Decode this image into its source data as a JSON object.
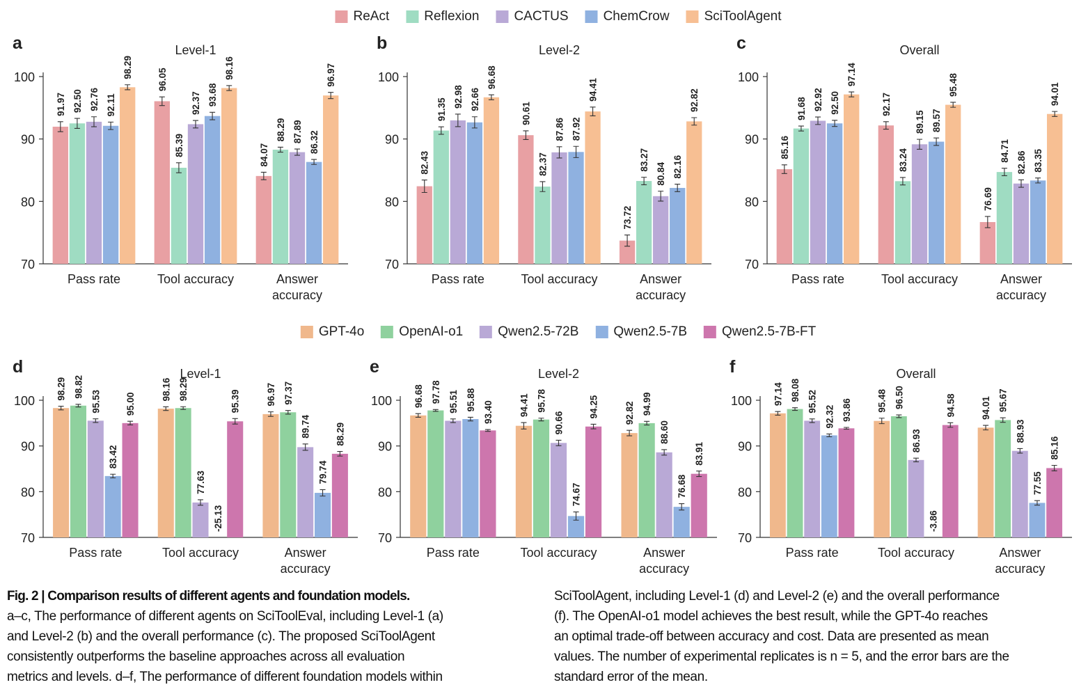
{
  "chart_data": [
    {
      "type": "bar",
      "panel": "a",
      "title": "Level-1",
      "categories": [
        "Pass rate",
        "Tool accuracy",
        "Answer accuracy"
      ],
      "ylim": [
        70,
        100
      ],
      "yticks": [
        70,
        80,
        90,
        100
      ],
      "series": [
        {
          "name": "ReAct",
          "color": "#e8a0a3",
          "values": [
            91.97,
            96.05,
            84.07
          ],
          "errors": [
            0.8,
            0.7,
            0.6
          ],
          "value_labels": [
            "91.97",
            "96.05",
            "84.07"
          ]
        },
        {
          "name": "Reflexion",
          "color": "#9fdcc2",
          "values": [
            92.5,
            85.39,
            88.29
          ],
          "errors": [
            0.8,
            0.8,
            0.4
          ],
          "value_labels": [
            "92.50",
            "85.39",
            "88.29"
          ]
        },
        {
          "name": "CACTUS",
          "color": "#b9a9d6",
          "values": [
            92.76,
            92.37,
            87.89
          ],
          "errors": [
            0.8,
            0.6,
            0.5
          ],
          "value_labels": [
            "92.76",
            "92.37",
            "87.89"
          ]
        },
        {
          "name": "ChemCrow",
          "color": "#8fb1e0",
          "values": [
            92.11,
            93.68,
            86.32
          ],
          "errors": [
            0.6,
            0.6,
            0.4
          ],
          "value_labels": [
            "92.11",
            "93.68",
            "86.32"
          ]
        },
        {
          "name": "SciToolAgent",
          "color": "#f7bf93",
          "values": [
            98.29,
            98.16,
            96.97
          ],
          "errors": [
            0.4,
            0.4,
            0.5
          ],
          "value_labels": [
            "98.29",
            "98.16",
            "96.97"
          ]
        }
      ]
    },
    {
      "type": "bar",
      "panel": "b",
      "title": "Level-2",
      "categories": [
        "Pass rate",
        "Tool accuracy",
        "Answer accuracy"
      ],
      "ylim": [
        70,
        100
      ],
      "yticks": [
        70,
        80,
        90,
        100
      ],
      "series": [
        {
          "name": "ReAct",
          "color": "#e8a0a3",
          "values": [
            82.43,
            90.61,
            73.72
          ],
          "errors": [
            1.0,
            0.7,
            0.9
          ],
          "value_labels": [
            "82.43",
            "90.61",
            "73.72"
          ]
        },
        {
          "name": "Reflexion",
          "color": "#9fdcc2",
          "values": [
            91.35,
            82.37,
            83.27
          ],
          "errors": [
            0.6,
            0.8,
            0.6
          ],
          "value_labels": [
            "91.35",
            "82.37",
            "83.27"
          ]
        },
        {
          "name": "CACTUS",
          "color": "#b9a9d6",
          "values": [
            92.98,
            87.86,
            80.84
          ],
          "errors": [
            1.0,
            0.9,
            0.8
          ],
          "value_labels": [
            "92.98",
            "87.86",
            "80.84"
          ]
        },
        {
          "name": "ChemCrow",
          "color": "#8fb1e0",
          "values": [
            92.66,
            87.92,
            82.16
          ],
          "errors": [
            0.9,
            0.9,
            0.6
          ],
          "value_labels": [
            "92.66",
            "87.92",
            "82.16"
          ]
        },
        {
          "name": "SciToolAgent",
          "color": "#f7bf93",
          "values": [
            96.68,
            94.41,
            92.82
          ],
          "errors": [
            0.4,
            0.7,
            0.6
          ],
          "value_labels": [
            "96.68",
            "94.41",
            "92.82"
          ]
        }
      ]
    },
    {
      "type": "bar",
      "panel": "c",
      "title": "Overall",
      "categories": [
        "Pass rate",
        "Tool accuracy",
        "Answer accuracy"
      ],
      "ylim": [
        70,
        100
      ],
      "yticks": [
        70,
        80,
        90,
        100
      ],
      "series": [
        {
          "name": "ReAct",
          "color": "#e8a0a3",
          "values": [
            85.16,
            92.17,
            76.69
          ],
          "errors": [
            0.7,
            0.6,
            0.9
          ],
          "value_labels": [
            "85.16",
            "92.17",
            "76.69"
          ]
        },
        {
          "name": "Reflexion",
          "color": "#9fdcc2",
          "values": [
            91.68,
            83.24,
            84.71
          ],
          "errors": [
            0.4,
            0.6,
            0.6
          ],
          "value_labels": [
            "91.68",
            "83.24",
            "84.71"
          ]
        },
        {
          "name": "CACTUS",
          "color": "#b9a9d6",
          "values": [
            92.92,
            89.15,
            82.86
          ],
          "errors": [
            0.6,
            0.8,
            0.6
          ],
          "value_labels": [
            "92.92",
            "89.15",
            "82.86"
          ]
        },
        {
          "name": "ChemCrow",
          "color": "#8fb1e0",
          "values": [
            92.5,
            89.57,
            83.35
          ],
          "errors": [
            0.5,
            0.6,
            0.4
          ],
          "value_labels": [
            "92.50",
            "89.57",
            "83.35"
          ]
        },
        {
          "name": "SciToolAgent",
          "color": "#f7bf93",
          "values": [
            97.14,
            95.48,
            94.01
          ],
          "errors": [
            0.4,
            0.4,
            0.4
          ],
          "value_labels": [
            "97.14",
            "95.48",
            "94.01"
          ]
        }
      ]
    },
    {
      "type": "bar",
      "panel": "d",
      "title": "Level-1",
      "categories": [
        "Pass rate",
        "Tool accuracy",
        "Answer accuracy"
      ],
      "ylim": [
        70,
        100
      ],
      "yticks": [
        70,
        80,
        90,
        100
      ],
      "series": [
        {
          "name": "GPT-4o",
          "color": "#f0b88c",
          "values": [
            98.29,
            98.16,
            96.97
          ],
          "errors": [
            0.4,
            0.4,
            0.5
          ],
          "value_labels": [
            "98.29",
            "98.16",
            "96.97"
          ]
        },
        {
          "name": "OpenAI-o1",
          "color": "#8fd19e",
          "values": [
            98.82,
            98.29,
            97.37
          ],
          "errors": [
            0.3,
            0.3,
            0.4
          ],
          "value_labels": [
            "98.82",
            "98.29",
            "97.37"
          ]
        },
        {
          "name": "Qwen2.5-72B",
          "color": "#b9a9d6",
          "values": [
            95.53,
            77.63,
            89.74
          ],
          "errors": [
            0.4,
            0.6,
            0.7
          ],
          "value_labels": [
            "95.53",
            "77.63",
            "89.74"
          ]
        },
        {
          "name": "Qwen2.5-7B",
          "color": "#8fb1e0",
          "values": [
            83.42,
            -25.13,
            79.74
          ],
          "errors": [
            0.4,
            0.0,
            0.7
          ],
          "value_labels": [
            "83.42",
            "-25.13",
            "79.74"
          ]
        },
        {
          "name": "Qwen2.5-7B-FT",
          "color": "#cd76ad",
          "values": [
            95.0,
            95.39,
            88.29
          ],
          "errors": [
            0.4,
            0.6,
            0.5
          ],
          "value_labels": [
            "95.00",
            "95.39",
            "88.29"
          ]
        }
      ]
    },
    {
      "type": "bar",
      "panel": "e",
      "title": "Level-2",
      "categories": [
        "Pass rate",
        "Tool accuracy",
        "Answer accuracy"
      ],
      "ylim": [
        70,
        100
      ],
      "yticks": [
        70,
        80,
        90,
        100
      ],
      "series": [
        {
          "name": "GPT-4o",
          "color": "#f0b88c",
          "values": [
            96.68,
            94.41,
            92.82
          ],
          "errors": [
            0.4,
            0.7,
            0.6
          ],
          "value_labels": [
            "96.68",
            "94.41",
            "92.82"
          ]
        },
        {
          "name": "OpenAI-o1",
          "color": "#8fd19e",
          "values": [
            97.78,
            95.78,
            94.99
          ],
          "errors": [
            0.2,
            0.3,
            0.4
          ],
          "value_labels": [
            "97.78",
            "95.78",
            "94.99"
          ]
        },
        {
          "name": "Qwen2.5-72B",
          "color": "#b9a9d6",
          "values": [
            95.51,
            90.66,
            88.6
          ],
          "errors": [
            0.4,
            0.6,
            0.6
          ],
          "value_labels": [
            "95.51",
            "90.66",
            "88.60"
          ]
        },
        {
          "name": "Qwen2.5-7B",
          "color": "#8fb1e0",
          "values": [
            95.88,
            74.67,
            76.68
          ],
          "errors": [
            0.4,
            0.9,
            0.7
          ],
          "value_labels": [
            "95.88",
            "74.67",
            "76.68"
          ]
        },
        {
          "name": "Qwen2.5-7B-FT",
          "color": "#cd76ad",
          "values": [
            93.4,
            94.25,
            83.91
          ],
          "errors": [
            0.2,
            0.5,
            0.6
          ],
          "value_labels": [
            "93.40",
            "94.25",
            "83.91"
          ]
        }
      ]
    },
    {
      "type": "bar",
      "panel": "f",
      "title": "Overall",
      "categories": [
        "Pass rate",
        "Tool accuracy",
        "Answer accuracy"
      ],
      "ylim": [
        70,
        100
      ],
      "yticks": [
        70,
        80,
        90,
        100
      ],
      "series": [
        {
          "name": "GPT-4o",
          "color": "#f0b88c",
          "values": [
            97.14,
            95.48,
            94.01
          ],
          "errors": [
            0.4,
            0.6,
            0.5
          ],
          "value_labels": [
            "97.14",
            "95.48",
            "94.01"
          ]
        },
        {
          "name": "OpenAI-o1",
          "color": "#8fd19e",
          "values": [
            98.08,
            96.5,
            95.67
          ],
          "errors": [
            0.3,
            0.3,
            0.5
          ],
          "value_labels": [
            "98.08",
            "96.50",
            "95.67"
          ]
        },
        {
          "name": "Qwen2.5-72B",
          "color": "#b9a9d6",
          "values": [
            95.52,
            86.93,
            88.93
          ],
          "errors": [
            0.4,
            0.4,
            0.5
          ],
          "value_labels": [
            "95.52",
            "86.93",
            "88.93"
          ]
        },
        {
          "name": "Qwen2.5-7B",
          "color": "#8fb1e0",
          "values": [
            92.32,
            -3.86,
            77.55
          ],
          "errors": [
            0.3,
            0.0,
            0.5
          ],
          "value_labels": [
            "92.32",
            "-3.86",
            "77.55"
          ]
        },
        {
          "name": "Qwen2.5-7B-FT",
          "color": "#cd76ad",
          "values": [
            93.86,
            94.58,
            85.16
          ],
          "errors": [
            0.2,
            0.5,
            0.6
          ],
          "value_labels": [
            "93.86",
            "94.58",
            "85.16"
          ]
        }
      ]
    }
  ],
  "caption": {
    "title": "Fig. 2 | Comparison results of different agents and foundation models.",
    "left": [
      "a–c, The performance of different agents on SciToolEval, including Level-1 (a)",
      "and Level-2 (b) and the overall performance (c). The proposed SciToolAgent",
      "consistently outperforms the baseline approaches across all evaluation",
      "metrics and levels. d–f, The performance of different foundation models within"
    ],
    "right": [
      "SciToolAgent, including Level-1 (d) and Level-2 (e) and the overall performance",
      "(f). The OpenAI-o1 model achieves the best result, while the GPT-4o reaches",
      "an optimal trade-off between accuracy and cost. Data are presented as mean",
      "values. The number of experimental replicates is n = 5, and the error bars are the",
      "standard error of the mean."
    ]
  }
}
